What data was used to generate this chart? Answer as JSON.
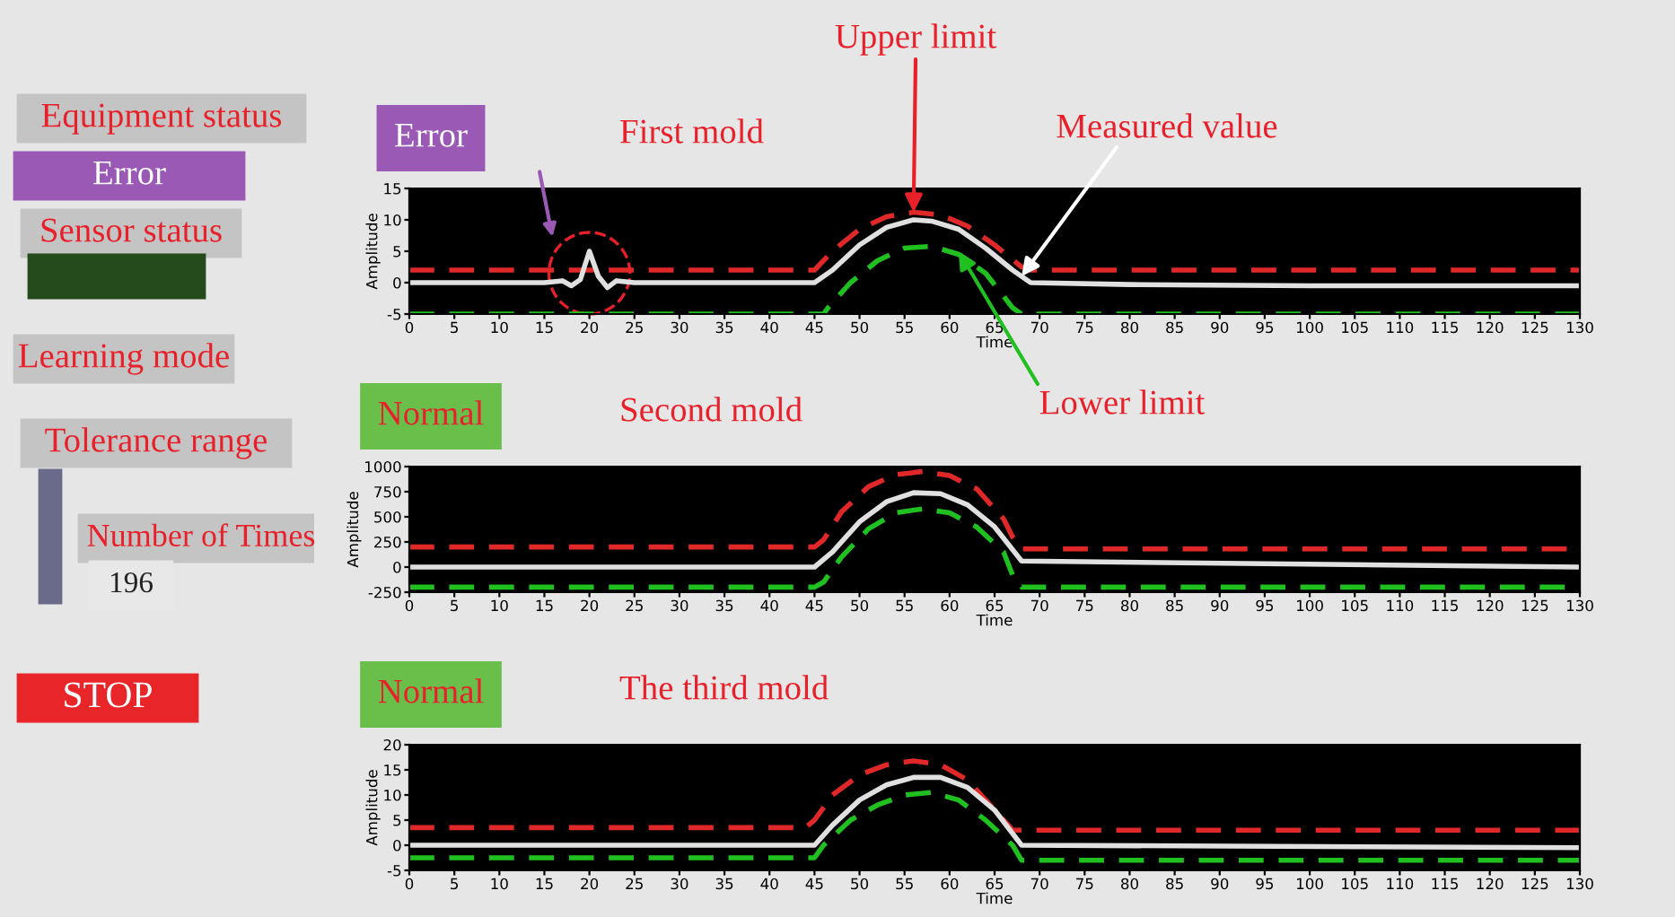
{
  "chart_data": [
    {
      "type": "other",
      "annotations": [
        "Equipment status",
        "Error",
        "Sensor status",
        "Learning mode",
        "Tolerance range",
        "Number of Times",
        "196",
        "STOP"
      ]
    },
    {
      "type": "line",
      "title": "First mold",
      "subtitle": "Error",
      "xlabel": "Time",
      "ylabel": "Amplitude",
      "xlim": [
        0,
        130
      ],
      "xticks": [
        0,
        5,
        10,
        15,
        20,
        25,
        30,
        35,
        40,
        45,
        50,
        55,
        60,
        65,
        70,
        75,
        80,
        85,
        90,
        95,
        100,
        105,
        110,
        115,
        120,
        125,
        130
      ],
      "ylim": [
        -5,
        15
      ],
      "yticks": [
        -5,
        0,
        5,
        10,
        15
      ],
      "grid": false,
      "legend": false,
      "annotations": [
        {
          "text": "Upper limit",
          "x": 56,
          "y": 11.2
        },
        {
          "text": "Measured value",
          "x": 68,
          "y": 1
        },
        {
          "text": "Lower limit",
          "x": 61,
          "y": 5
        }
      ],
      "series": [
        {
          "color": "#e02828",
          "line_style": "dashed",
          "x": [
            0,
            45,
            47,
            50,
            53,
            56,
            59,
            62,
            65,
            68,
            69,
            130
          ],
          "values": [
            2,
            2,
            5,
            8.5,
            10.5,
            11.2,
            10.8,
            9,
            6,
            2.5,
            2,
            2
          ]
        },
        {
          "color": "#20c020",
          "line_style": "dashed",
          "x": [
            0,
            46,
            46.5,
            49,
            52,
            55,
            58,
            61,
            64,
            67,
            68,
            130
          ],
          "values": [
            -5,
            -5,
            -4,
            0,
            3.5,
            5.5,
            5.8,
            4.5,
            1.5,
            -4,
            -5,
            -5
          ]
        },
        {
          "color": "#e0e0e0",
          "line_style": "solid",
          "x": [
            0,
            10,
            15,
            17,
            18,
            19,
            20,
            21,
            22,
            23,
            25,
            30,
            45,
            47,
            50,
            53,
            56,
            58,
            61,
            64,
            67,
            69,
            80,
            100,
            120,
            130
          ],
          "values": [
            0,
            0,
            0,
            0.3,
            -0.5,
            0.5,
            5,
            1,
            -0.8,
            0.3,
            0,
            0,
            0,
            2,
            6,
            8.8,
            10,
            9.8,
            8.5,
            5.5,
            2,
            0,
            -0.3,
            -0.5,
            -0.5,
            -0.5
          ]
        }
      ]
    },
    {
      "type": "line",
      "title": "Second mold",
      "subtitle": "Normal",
      "xlabel": "Time",
      "ylabel": "Amplitude",
      "xlim": [
        0,
        130
      ],
      "xticks": [
        0,
        5,
        10,
        15,
        20,
        25,
        30,
        35,
        40,
        45,
        50,
        55,
        60,
        65,
        70,
        75,
        80,
        85,
        90,
        95,
        100,
        105,
        110,
        115,
        120,
        125,
        130
      ],
      "ylim": [
        -250,
        1000
      ],
      "yticks": [
        -250,
        0,
        250,
        500,
        750,
        1000
      ],
      "grid": false,
      "legend": false,
      "series": [
        {
          "color": "#e02828",
          "line_style": "dashed",
          "x": [
            0,
            45,
            46,
            48,
            51,
            54,
            57,
            60,
            63,
            66,
            67,
            68,
            130
          ],
          "values": [
            200,
            200,
            270,
            550,
            800,
            920,
            950,
            910,
            780,
            480,
            300,
            180,
            180
          ]
        },
        {
          "color": "#20c020",
          "line_style": "dashed",
          "x": [
            0,
            45,
            46,
            48,
            51,
            54,
            57,
            60,
            63,
            66,
            67,
            68,
            130
          ],
          "values": [
            -200,
            -200,
            -150,
            100,
            380,
            540,
            580,
            540,
            400,
            150,
            -80,
            -200,
            -200
          ]
        },
        {
          "color": "#e0e0e0",
          "line_style": "solid",
          "x": [
            0,
            45,
            47,
            50,
            53,
            56,
            59,
            62,
            65,
            68,
            130
          ],
          "values": [
            0,
            0,
            150,
            450,
            650,
            740,
            730,
            620,
            400,
            60,
            0
          ]
        }
      ]
    },
    {
      "type": "line",
      "title": "The third mold",
      "subtitle": "Normal",
      "xlabel": "Time",
      "ylabel": "Amplitude",
      "xlim": [
        0,
        130
      ],
      "xticks": [
        0,
        5,
        10,
        15,
        20,
        25,
        30,
        35,
        40,
        45,
        50,
        55,
        60,
        65,
        70,
        75,
        80,
        85,
        90,
        95,
        100,
        105,
        110,
        115,
        120,
        125,
        130
      ],
      "ylim": [
        -5,
        20
      ],
      "yticks": [
        -5,
        0,
        5,
        10,
        15,
        20
      ],
      "grid": false,
      "legend": false,
      "series": [
        {
          "color": "#e02828",
          "line_style": "dashed",
          "x": [
            0,
            44,
            45,
            47,
            50,
            53,
            56,
            59,
            62,
            65,
            67,
            130
          ],
          "values": [
            3.5,
            3.5,
            5,
            10,
            14,
            16,
            16.8,
            16,
            13,
            7,
            3,
            3
          ]
        },
        {
          "color": "#20c020",
          "line_style": "dashed",
          "x": [
            0,
            45,
            46,
            49,
            52,
            55,
            58,
            61,
            64,
            67,
            68,
            130
          ],
          "values": [
            -2.5,
            -2.5,
            0,
            5,
            8,
            10,
            10.5,
            9,
            5,
            0,
            -3,
            -3
          ]
        },
        {
          "color": "#e0e0e0",
          "line_style": "solid",
          "x": [
            0,
            45,
            47,
            50,
            53,
            56,
            59,
            62,
            65,
            68,
            130
          ],
          "values": [
            0,
            0,
            4,
            9,
            12,
            13.5,
            13.5,
            11.5,
            7,
            0,
            -0.5
          ]
        }
      ]
    }
  ]
}
